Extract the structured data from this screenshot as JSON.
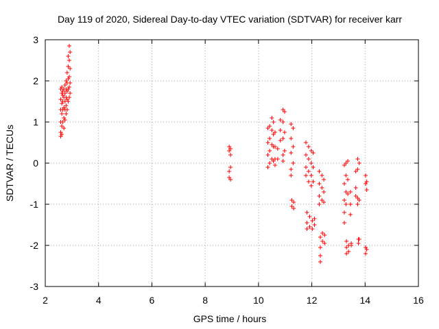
{
  "chart_data": {
    "type": "scatter",
    "title": "Day 119 of 2020, Sidereal Day-to-day VTEC variation (SDTVAR) for receiver karr",
    "xlabel": "GPS time / hours",
    "ylabel": "SDTVAR / TECUs",
    "xlim": [
      2,
      16
    ],
    "ylim": [
      -3,
      3
    ],
    "xticks": [
      2,
      4,
      6,
      8,
      10,
      12,
      14,
      16
    ],
    "yticks": [
      -3,
      -2,
      -1,
      0,
      1,
      2,
      3
    ],
    "grid": true,
    "marker": "plus",
    "colors": {
      "series": "#ff0000",
      "grid": "#a0a0a0",
      "axis": "#000000"
    },
    "series": [
      {
        "name": "SDTVAR",
        "points": [
          [
            2.58,
            0.65
          ],
          [
            2.58,
            0.75
          ],
          [
            2.58,
            1.0
          ],
          [
            2.58,
            1.3
          ],
          [
            2.58,
            1.55
          ],
          [
            2.58,
            1.8
          ],
          [
            2.62,
            0.7
          ],
          [
            2.62,
            0.9
          ],
          [
            2.62,
            1.2
          ],
          [
            2.62,
            1.45
          ],
          [
            2.62,
            1.7
          ],
          [
            2.62,
            1.85
          ],
          [
            2.66,
            1.0
          ],
          [
            2.66,
            1.3
          ],
          [
            2.66,
            1.5
          ],
          [
            2.66,
            1.65
          ],
          [
            2.66,
            1.75
          ],
          [
            2.7,
            0.85
          ],
          [
            2.7,
            1.1
          ],
          [
            2.7,
            1.35
          ],
          [
            2.7,
            1.6
          ],
          [
            2.7,
            1.8
          ],
          [
            2.74,
            1.05
          ],
          [
            2.74,
            1.3
          ],
          [
            2.74,
            1.5
          ],
          [
            2.74,
            1.7
          ],
          [
            2.74,
            1.9
          ],
          [
            2.78,
            1.2
          ],
          [
            2.78,
            1.4
          ],
          [
            2.78,
            1.6
          ],
          [
            2.78,
            1.8
          ],
          [
            2.78,
            2.0
          ],
          [
            2.82,
            1.3
          ],
          [
            2.82,
            1.55
          ],
          [
            2.82,
            1.75
          ],
          [
            2.82,
            1.95
          ],
          [
            2.82,
            2.2
          ],
          [
            2.86,
            1.5
          ],
          [
            2.86,
            1.8
          ],
          [
            2.86,
            2.05
          ],
          [
            2.86,
            2.35
          ],
          [
            2.86,
            2.6
          ],
          [
            2.9,
            1.6
          ],
          [
            2.9,
            1.85
          ],
          [
            2.9,
            2.1
          ],
          [
            2.9,
            2.5
          ],
          [
            2.9,
            2.85
          ],
          [
            2.93,
            1.7
          ],
          [
            2.93,
            1.95
          ],
          [
            2.93,
            2.3
          ],
          [
            2.93,
            2.7
          ],
          [
            8.9,
            0.4
          ],
          [
            8.9,
            0.3
          ],
          [
            8.9,
            -0.2
          ],
          [
            8.9,
            -0.35
          ],
          [
            8.95,
            0.2
          ],
          [
            8.95,
            0.35
          ],
          [
            8.95,
            -0.1
          ],
          [
            8.95,
            -0.4
          ],
          [
            10.35,
            0.85
          ],
          [
            10.35,
            0.5
          ],
          [
            10.35,
            0.2
          ],
          [
            10.35,
            -0.1
          ],
          [
            10.42,
            0.9
          ],
          [
            10.42,
            0.6
          ],
          [
            10.42,
            0.3
          ],
          [
            10.42,
            0.0
          ],
          [
            10.5,
            1.1
          ],
          [
            10.5,
            0.8
          ],
          [
            10.5,
            0.45
          ],
          [
            10.5,
            0.1
          ],
          [
            10.56,
            1.0
          ],
          [
            10.56,
            0.7
          ],
          [
            10.56,
            0.4
          ],
          [
            10.56,
            0.05
          ],
          [
            10.62,
            0.75
          ],
          [
            10.62,
            0.4
          ],
          [
            10.62,
            0.1
          ],
          [
            10.62,
            -0.05
          ],
          [
            10.72,
            0.35
          ],
          [
            10.72,
            0.1
          ],
          [
            10.82,
            1.05
          ],
          [
            10.82,
            0.8
          ],
          [
            10.82,
            0.55
          ],
          [
            10.92,
            1.3
          ],
          [
            10.92,
            1.0
          ],
          [
            10.92,
            0.6
          ],
          [
            10.92,
            0.2
          ],
          [
            10.92,
            0.05
          ],
          [
            10.98,
            1.25
          ],
          [
            10.98,
            0.75
          ],
          [
            10.98,
            0.3
          ],
          [
            11.22,
            0.95
          ],
          [
            11.22,
            0.6
          ],
          [
            11.22,
            0.25
          ],
          [
            11.22,
            -0.15
          ],
          [
            11.22,
            -0.3
          ],
          [
            11.25,
            -0.9
          ],
          [
            11.25,
            -1.05
          ],
          [
            11.3,
            0.85
          ],
          [
            11.3,
            0.4
          ],
          [
            11.3,
            0.0
          ],
          [
            11.32,
            -0.95
          ],
          [
            11.32,
            -1.1
          ],
          [
            11.78,
            0.5
          ],
          [
            11.78,
            0.2
          ],
          [
            11.78,
            -0.1
          ],
          [
            11.78,
            -0.3
          ],
          [
            11.82,
            -1.2
          ],
          [
            11.82,
            -1.45
          ],
          [
            11.82,
            -1.6
          ],
          [
            11.88,
            0.4
          ],
          [
            11.88,
            0.1
          ],
          [
            11.88,
            -0.2
          ],
          [
            11.88,
            -0.45
          ],
          [
            11.92,
            -1.3
          ],
          [
            11.92,
            -1.55
          ],
          [
            11.98,
            0.3
          ],
          [
            11.98,
            0.0
          ],
          [
            11.98,
            -0.3
          ],
          [
            11.98,
            -0.55
          ],
          [
            12.02,
            -1.4
          ],
          [
            12.02,
            -1.6
          ],
          [
            12.05,
            0.25
          ],
          [
            12.05,
            -0.1
          ],
          [
            12.05,
            -0.45
          ],
          [
            12.1,
            -1.35
          ],
          [
            12.1,
            -1.5
          ],
          [
            12.28,
            -0.2
          ],
          [
            12.28,
            -0.5
          ],
          [
            12.28,
            -0.8
          ],
          [
            12.28,
            -1.0
          ],
          [
            12.32,
            -1.8
          ],
          [
            12.32,
            -2.05
          ],
          [
            12.32,
            -2.25
          ],
          [
            12.32,
            -2.4
          ],
          [
            12.38,
            -0.3
          ],
          [
            12.38,
            -0.6
          ],
          [
            12.38,
            -0.9
          ],
          [
            12.4,
            -1.7
          ],
          [
            12.4,
            -1.9
          ],
          [
            12.45,
            -0.4
          ],
          [
            12.45,
            -0.7
          ],
          [
            12.45,
            -0.95
          ],
          [
            12.48,
            -1.75
          ],
          [
            12.48,
            -1.95
          ],
          [
            13.22,
            -0.05
          ],
          [
            13.22,
            -0.5
          ],
          [
            13.22,
            -0.9
          ],
          [
            13.22,
            -1.2
          ],
          [
            13.22,
            -1.45
          ],
          [
            13.28,
            0.0
          ],
          [
            13.28,
            -0.3
          ],
          [
            13.28,
            -0.7
          ],
          [
            13.28,
            -1.0
          ],
          [
            13.3,
            -1.9
          ],
          [
            13.3,
            -2.05
          ],
          [
            13.3,
            -2.2
          ],
          [
            13.35,
            0.05
          ],
          [
            13.35,
            -0.4
          ],
          [
            13.35,
            -0.75
          ],
          [
            13.38,
            -2.0
          ],
          [
            13.38,
            -2.15
          ],
          [
            13.45,
            -0.7
          ],
          [
            13.45,
            -1.0
          ],
          [
            13.45,
            -1.25
          ],
          [
            13.48,
            -2.0
          ],
          [
            13.48,
            -1.95
          ],
          [
            13.65,
            -0.2
          ],
          [
            13.65,
            -0.6
          ],
          [
            13.65,
            -0.8
          ],
          [
            13.72,
            0.1
          ],
          [
            13.72,
            -0.15
          ],
          [
            13.72,
            -0.85
          ],
          [
            13.72,
            -1.0
          ],
          [
            13.75,
            -1.85
          ],
          [
            13.75,
            -1.95
          ],
          [
            13.78,
            0.0
          ],
          [
            13.78,
            -0.9
          ],
          [
            13.78,
            -1.85
          ],
          [
            14.02,
            -0.3
          ],
          [
            14.02,
            -0.5
          ],
          [
            14.02,
            -2.05
          ],
          [
            14.02,
            -2.2
          ],
          [
            14.06,
            -0.45
          ],
          [
            14.06,
            -0.65
          ],
          [
            14.06,
            -2.1
          ]
        ]
      }
    ]
  }
}
